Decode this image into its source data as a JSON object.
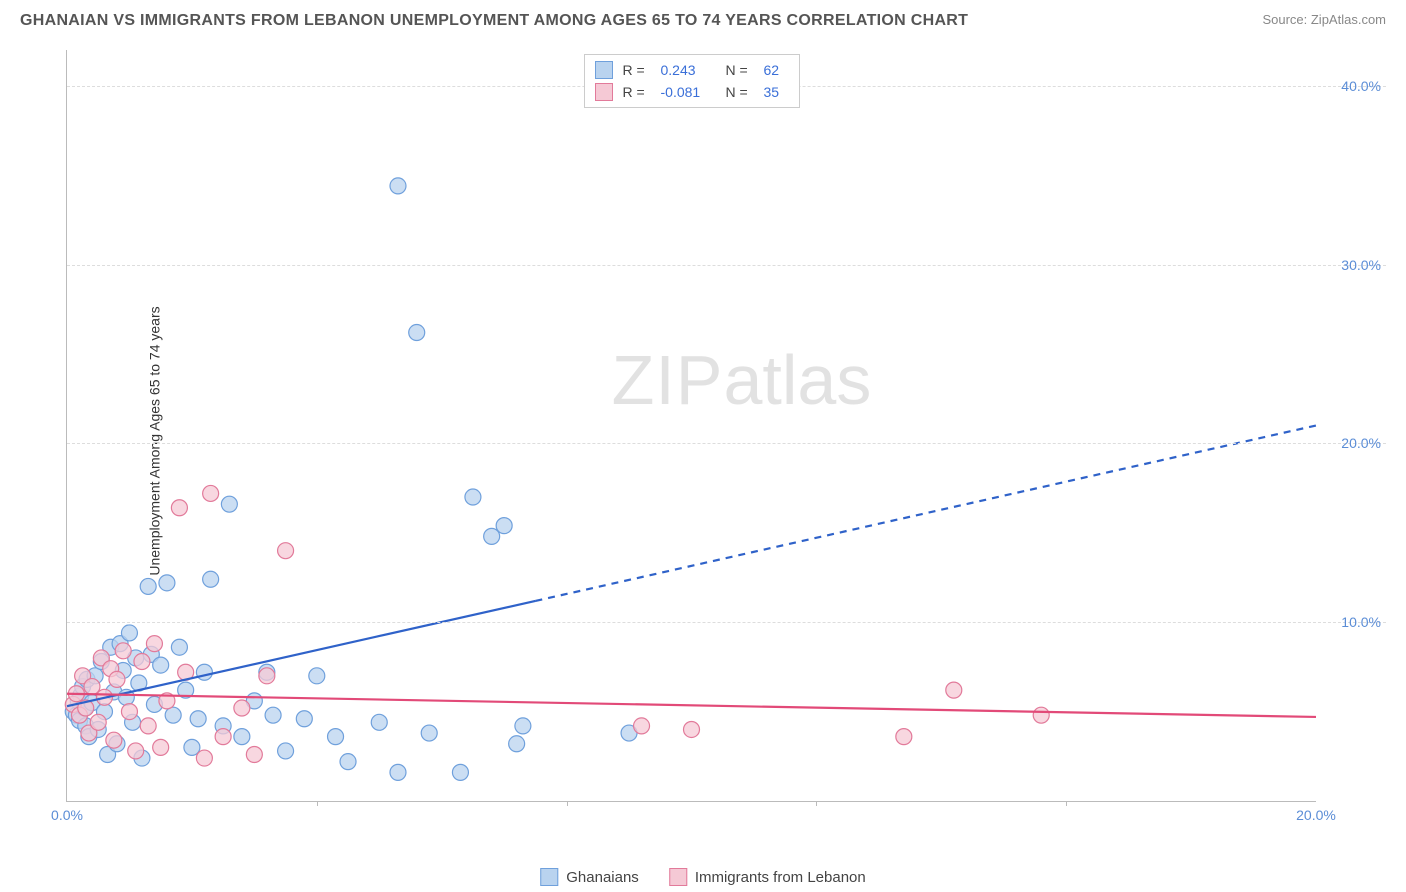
{
  "header": {
    "title": "GHANAIAN VS IMMIGRANTS FROM LEBANON UNEMPLOYMENT AMONG AGES 65 TO 74 YEARS CORRELATION CHART",
    "source": "Source: ZipAtlas.com"
  },
  "chart": {
    "type": "scatter",
    "ylabel": "Unemployment Among Ages 65 to 74 years",
    "watermark_zip": "ZIP",
    "watermark_atlas": "atlas",
    "background_color": "#ffffff",
    "grid_color": "#dddddd",
    "axis_color": "#bbbbbb",
    "tick_label_color": "#5b8dd6",
    "xlim": [
      0,
      20
    ],
    "ylim": [
      0,
      42
    ],
    "yticks": [
      {
        "v": 10,
        "label": "10.0%"
      },
      {
        "v": 20,
        "label": "20.0%"
      },
      {
        "v": 30,
        "label": "30.0%"
      },
      {
        "v": 40,
        "label": "40.0%"
      }
    ],
    "xticks": [
      {
        "v": 0,
        "label": "0.0%"
      },
      {
        "v": 20,
        "label": "20.0%"
      }
    ],
    "xtick_marks": [
      4,
      8,
      12,
      16
    ],
    "series": [
      {
        "name": "Ghanaians",
        "fill": "#b9d3ef",
        "stroke": "#6fa0dc",
        "marker_radius": 8,
        "R": "0.243",
        "N": "62",
        "regression": {
          "x1": 0,
          "y1": 5.3,
          "x2": 20,
          "y2": 21.0,
          "solid_until_x": 7.5,
          "color": "#2f62c9",
          "width": 2.2
        },
        "points": [
          [
            0.1,
            5.0
          ],
          [
            0.15,
            4.8
          ],
          [
            0.18,
            5.6
          ],
          [
            0.2,
            4.5
          ],
          [
            0.22,
            5.9
          ],
          [
            0.25,
            6.4
          ],
          [
            0.28,
            5.2
          ],
          [
            0.3,
            4.2
          ],
          [
            0.32,
            6.8
          ],
          [
            0.35,
            3.6
          ],
          [
            0.4,
            5.5
          ],
          [
            0.45,
            7.0
          ],
          [
            0.5,
            4.0
          ],
          [
            0.55,
            7.8
          ],
          [
            0.6,
            5.0
          ],
          [
            0.65,
            2.6
          ],
          [
            0.7,
            8.6
          ],
          [
            0.75,
            6.1
          ],
          [
            0.8,
            3.2
          ],
          [
            0.85,
            8.8
          ],
          [
            0.9,
            7.3
          ],
          [
            0.95,
            5.8
          ],
          [
            1.0,
            9.4
          ],
          [
            1.05,
            4.4
          ],
          [
            1.1,
            8.0
          ],
          [
            1.15,
            6.6
          ],
          [
            1.2,
            2.4
          ],
          [
            1.3,
            12.0
          ],
          [
            1.35,
            8.2
          ],
          [
            1.4,
            5.4
          ],
          [
            1.5,
            7.6
          ],
          [
            1.6,
            12.2
          ],
          [
            1.7,
            4.8
          ],
          [
            1.8,
            8.6
          ],
          [
            1.9,
            6.2
          ],
          [
            2.0,
            3.0
          ],
          [
            2.1,
            4.6
          ],
          [
            2.2,
            7.2
          ],
          [
            2.3,
            12.4
          ],
          [
            2.5,
            4.2
          ],
          [
            2.6,
            16.6
          ],
          [
            2.8,
            3.6
          ],
          [
            3.0,
            5.6
          ],
          [
            3.2,
            7.2
          ],
          [
            3.3,
            4.8
          ],
          [
            3.5,
            2.8
          ],
          [
            3.8,
            4.6
          ],
          [
            4.0,
            7.0
          ],
          [
            4.3,
            3.6
          ],
          [
            4.5,
            2.2
          ],
          [
            5.0,
            4.4
          ],
          [
            5.3,
            34.4
          ],
          [
            5.3,
            1.6
          ],
          [
            5.6,
            26.2
          ],
          [
            5.8,
            3.8
          ],
          [
            6.3,
            1.6
          ],
          [
            6.5,
            17.0
          ],
          [
            6.8,
            14.8
          ],
          [
            7.0,
            15.4
          ],
          [
            7.2,
            3.2
          ],
          [
            7.3,
            4.2
          ],
          [
            9.0,
            3.8
          ]
        ]
      },
      {
        "name": "Immigrants from Lebanon",
        "fill": "#f5c9d5",
        "stroke": "#e27a9a",
        "marker_radius": 8,
        "R": "-0.081",
        "N": "35",
        "regression": {
          "x1": 0,
          "y1": 6.0,
          "x2": 20,
          "y2": 4.7,
          "solid_until_x": 20,
          "color": "#e24a78",
          "width": 2.2
        },
        "points": [
          [
            0.1,
            5.4
          ],
          [
            0.15,
            6.0
          ],
          [
            0.2,
            4.8
          ],
          [
            0.25,
            7.0
          ],
          [
            0.3,
            5.2
          ],
          [
            0.35,
            3.8
          ],
          [
            0.4,
            6.4
          ],
          [
            0.5,
            4.4
          ],
          [
            0.55,
            8.0
          ],
          [
            0.6,
            5.8
          ],
          [
            0.7,
            7.4
          ],
          [
            0.75,
            3.4
          ],
          [
            0.8,
            6.8
          ],
          [
            0.9,
            8.4
          ],
          [
            1.0,
            5.0
          ],
          [
            1.1,
            2.8
          ],
          [
            1.2,
            7.8
          ],
          [
            1.3,
            4.2
          ],
          [
            1.4,
            8.8
          ],
          [
            1.5,
            3.0
          ],
          [
            1.6,
            5.6
          ],
          [
            1.8,
            16.4
          ],
          [
            1.9,
            7.2
          ],
          [
            2.2,
            2.4
          ],
          [
            2.3,
            17.2
          ],
          [
            2.5,
            3.6
          ],
          [
            2.8,
            5.2
          ],
          [
            3.0,
            2.6
          ],
          [
            3.2,
            7.0
          ],
          [
            3.5,
            14.0
          ],
          [
            9.2,
            4.2
          ],
          [
            10.0,
            4.0
          ],
          [
            13.4,
            3.6
          ],
          [
            14.2,
            6.2
          ],
          [
            15.6,
            4.8
          ]
        ]
      }
    ]
  },
  "legend_bottom": {
    "items": [
      {
        "label": "Ghanaians",
        "fill": "#b9d3ef",
        "stroke": "#6fa0dc"
      },
      {
        "label": "Immigrants from Lebanon",
        "fill": "#f5c9d5",
        "stroke": "#e27a9a"
      }
    ]
  }
}
